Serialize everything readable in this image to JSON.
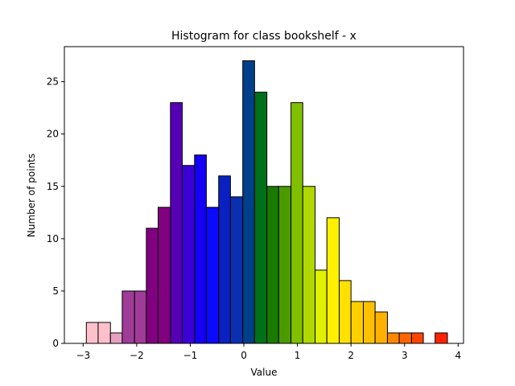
{
  "chart_data": {
    "type": "bar",
    "title": "Histogram for class bookshelf - x",
    "xlabel": "Value",
    "ylabel": "Number of points",
    "xlim": [
      -3.35,
      4.1
    ],
    "ylim": [
      0,
      28.35
    ],
    "xticks": [
      -3,
      -2,
      -1,
      0,
      1,
      2,
      3,
      4
    ],
    "yticks": [
      0,
      5,
      10,
      15,
      20,
      25
    ],
    "grid": false,
    "bins": [
      {
        "x0": -2.94,
        "x1": -2.72,
        "count": 2,
        "color": "#ffc0cb"
      },
      {
        "x0": -2.72,
        "x1": -2.49,
        "count": 2,
        "color": "#ffc0cb"
      },
      {
        "x0": -2.49,
        "x1": -2.27,
        "count": 1,
        "color": "#e8a0c0"
      },
      {
        "x0": -2.27,
        "x1": -2.04,
        "count": 5,
        "color": "#a03b98"
      },
      {
        "x0": -2.04,
        "x1": -1.82,
        "count": 5,
        "color": "#a03b98"
      },
      {
        "x0": -1.82,
        "x1": -1.6,
        "count": 11,
        "color": "#800080"
      },
      {
        "x0": -1.6,
        "x1": -1.37,
        "count": 13,
        "color": "#800080"
      },
      {
        "x0": -1.37,
        "x1": -1.15,
        "count": 23,
        "color": "#5500b5"
      },
      {
        "x0": -1.15,
        "x1": -0.92,
        "count": 17,
        "color": "#3b00d5"
      },
      {
        "x0": -0.92,
        "x1": -0.7,
        "count": 18,
        "color": "#1500f5"
      },
      {
        "x0": -0.7,
        "x1": -0.47,
        "count": 13,
        "color": "#0a0aff"
      },
      {
        "x0": -0.47,
        "x1": -0.25,
        "count": 16,
        "color": "#0a20c0"
      },
      {
        "x0": -0.25,
        "x1": -0.02,
        "count": 14,
        "color": "#0a30b0"
      },
      {
        "x0": -0.02,
        "x1": 0.2,
        "count": 27,
        "color": "#00408a"
      },
      {
        "x0": 0.2,
        "x1": 0.43,
        "count": 24,
        "color": "#00701a"
      },
      {
        "x0": 0.43,
        "x1": 0.65,
        "count": 15,
        "color": "#1a7a00"
      },
      {
        "x0": 0.65,
        "x1": 0.88,
        "count": 15,
        "color": "#4a9a00"
      },
      {
        "x0": 0.88,
        "x1": 1.1,
        "count": 23,
        "color": "#80c000"
      },
      {
        "x0": 1.1,
        "x1": 1.33,
        "count": 15,
        "color": "#b0d800"
      },
      {
        "x0": 1.33,
        "x1": 1.55,
        "count": 7,
        "color": "#e0f000"
      },
      {
        "x0": 1.55,
        "x1": 1.78,
        "count": 12,
        "color": "#fff000"
      },
      {
        "x0": 1.78,
        "x1": 2.0,
        "count": 6,
        "color": "#ffe000"
      },
      {
        "x0": 2.0,
        "x1": 2.23,
        "count": 4,
        "color": "#ffd000"
      },
      {
        "x0": 2.23,
        "x1": 2.45,
        "count": 4,
        "color": "#ffc000"
      },
      {
        "x0": 2.45,
        "x1": 2.68,
        "count": 3,
        "color": "#ffb000"
      },
      {
        "x0": 2.68,
        "x1": 2.9,
        "count": 1,
        "color": "#ff8800"
      },
      {
        "x0": 2.9,
        "x1": 3.13,
        "count": 1,
        "color": "#ff6600"
      },
      {
        "x0": 3.13,
        "x1": 3.35,
        "count": 1,
        "color": "#ff4400"
      },
      {
        "x0": 3.57,
        "x1": 3.8,
        "count": 1,
        "color": "#ff2200"
      }
    ]
  }
}
